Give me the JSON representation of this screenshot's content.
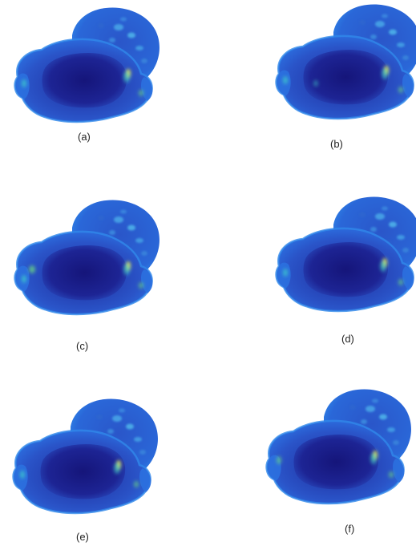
{
  "panels": [
    {
      "label": "(a)",
      "variant": "a"
    },
    {
      "label": "(b)",
      "variant": "b"
    },
    {
      "label": "(c)",
      "variant": "c"
    },
    {
      "label": "(d)",
      "variant": "d"
    },
    {
      "label": "(e)",
      "variant": "e"
    },
    {
      "label": "(f)",
      "variant": "f"
    }
  ],
  "colors": {
    "outer_edge": "#1f5fd6",
    "body_mid": "#2747b8",
    "body_deep": "#1c1f8c",
    "center_dark": "#17177a",
    "highlight_cyan": "#3fd3c9",
    "highlight_yellow": "#e8e84a",
    "highlight_green": "#6ee07a"
  }
}
